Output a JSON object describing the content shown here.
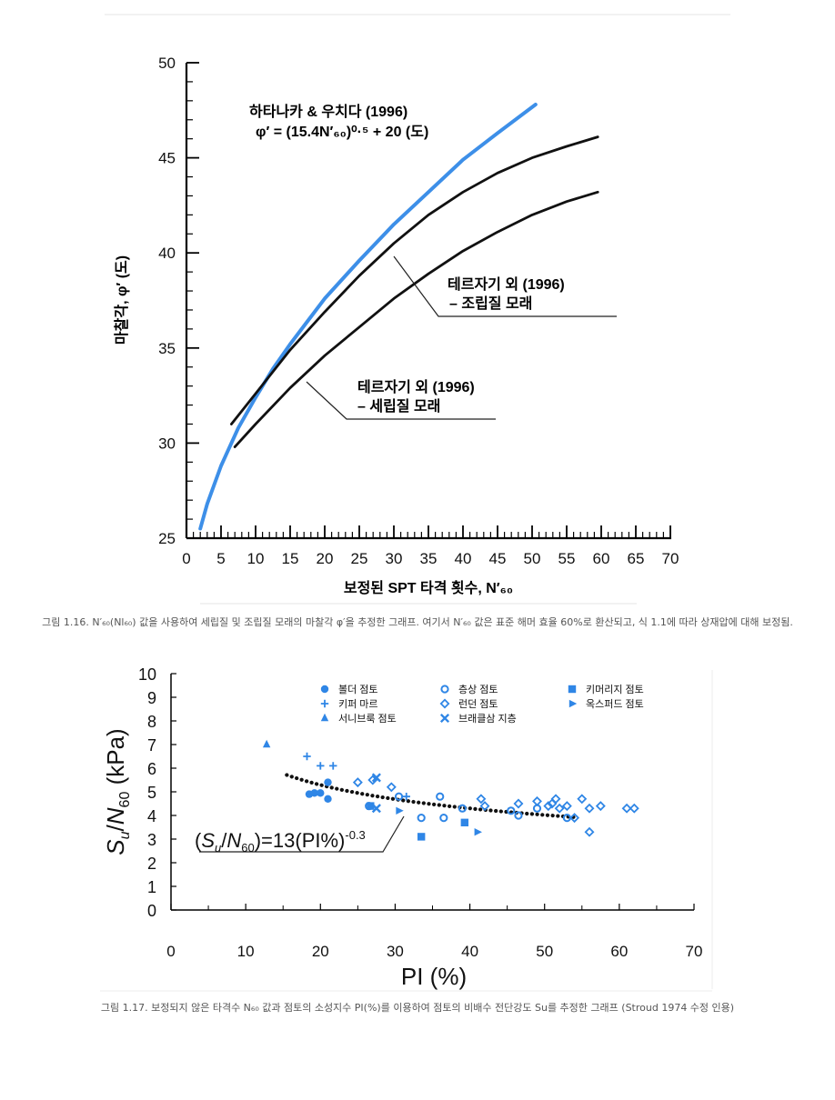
{
  "figure1": {
    "caption": "그림 1.16. N′₆₀(Nl₆₀) 값을 사용하여 세립질 및 조립질 모래의 마찰각 φ′을 추정한 그래프. 여기서 N′₆₀ 값은 표준 해머 효율 60%로 환산되고, 식 1.1에 따라 상재압에 대해 보정됨.",
    "annotation_blue_title": "하타나카 & 우치다 (1996)",
    "annotation_blue_formula": "φ′ = (15.4N′₆₀)⁰·⁵ + 20 (도)",
    "annotation_coarse_line1": "테르자기 외 (1996)",
    "annotation_coarse_line2": "– 조립질 모래",
    "annotation_fine_line1": "테르자기 외 (1996)",
    "annotation_fine_line2": "– 세립질 모래",
    "colors": {
      "blue": "#3d8fe8",
      "black": "#111111"
    }
  },
  "figure2": {
    "caption": "그림 1.17. 보정되지 않은 타격수 N₆₀ 값과 점토의 소성지수 PI(%)를 이용하여 점토의 비배수 전단강도 Su를 추정한 그래프 (Stroud 1974 수정 인용)",
    "equation": "(Su/N60)=13(PI%)-0.3",
    "colors": {
      "marker": "#2f86e6",
      "trend": "#111111"
    }
  },
  "chart_data": [
    {
      "type": "line",
      "xlabel": "보정된 SPT 타격 횟수, N′₆₀",
      "ylabel": "마찰각, φ′ (도)",
      "xlim": [
        0,
        70
      ],
      "ylim": [
        25,
        50
      ],
      "xticks": [
        "0",
        "5",
        "10",
        "15",
        "20",
        "25",
        "30",
        "35",
        "40",
        "45",
        "50",
        "55",
        "60",
        "65",
        "70"
      ],
      "yticks": [
        "25",
        "30",
        "35",
        "40",
        "45",
        "50"
      ],
      "grid": false,
      "series": [
        {
          "name": "하타나카 & 우치다 (1996)",
          "color": "#3d8fe8",
          "x": [
            2,
            3,
            5,
            7.5,
            10,
            12.5,
            15,
            17.5,
            20,
            25,
            30,
            35,
            40,
            45,
            50.5
          ],
          "y": [
            25.5,
            26.8,
            28.8,
            30.8,
            32.4,
            33.9,
            35.2,
            36.4,
            37.6,
            39.6,
            41.5,
            43.2,
            44.9,
            46.3,
            47.8
          ]
        },
        {
          "name": "테르자기 외 (1996) – 조립질 모래",
          "color": "#111111",
          "x": [
            6.5,
            10,
            15,
            20,
            25,
            30,
            35,
            40,
            45,
            50,
            55,
            59.5
          ],
          "y": [
            31.0,
            32.6,
            34.9,
            36.9,
            38.8,
            40.5,
            42.0,
            43.2,
            44.2,
            45.0,
            45.6,
            46.1
          ]
        },
        {
          "name": "테르자기 외 (1996) – 세립질 모래",
          "color": "#111111",
          "x": [
            7,
            10,
            15,
            20,
            25,
            30,
            35,
            40,
            45,
            50,
            55,
            59.5
          ],
          "y": [
            29.8,
            31.0,
            32.9,
            34.6,
            36.1,
            37.6,
            38.9,
            40.1,
            41.1,
            42.0,
            42.7,
            43.2
          ]
        }
      ]
    },
    {
      "type": "scatter",
      "xlabel": "PI (%)",
      "ylabel": "Su/N60 (kPa)",
      "xlim": [
        0,
        70
      ],
      "ylim": [
        0,
        10
      ],
      "xticks": [
        "0",
        "10",
        "20",
        "30",
        "40",
        "50",
        "60",
        "70"
      ],
      "yticks": [
        "0",
        "1",
        "2",
        "3",
        "4",
        "5",
        "6",
        "7",
        "8",
        "9",
        "10"
      ],
      "grid": false,
      "legend_position": "top",
      "trend": {
        "name": "(Su/N60)=13(PI%)-0.3",
        "coef": 13,
        "exp": -0.3,
        "x_range": [
          15.5,
          54
        ]
      },
      "series": [
        {
          "name": "볼더 점토",
          "marker": "circle",
          "points": [
            [
              18.5,
              4.9
            ],
            [
              19.2,
              4.95
            ],
            [
              20,
              4.95
            ],
            [
              21,
              5.4
            ],
            [
              21,
              4.7
            ]
          ]
        },
        {
          "name": "층상 점토",
          "marker": "circle-open",
          "points": [
            [
              26.5,
              4.4
            ],
            [
              30.5,
              4.8
            ],
            [
              33.5,
              3.9
            ],
            [
              36,
              4.8
            ],
            [
              36.5,
              3.9
            ],
            [
              39,
              4.3
            ],
            [
              45.5,
              4.2
            ],
            [
              46.5,
              4.0
            ],
            [
              49,
              4.3
            ],
            [
              53,
              3.9
            ]
          ]
        },
        {
          "name": "키머리지 점토",
          "marker": "square",
          "points": [
            [
              26.7,
              4.4
            ],
            [
              33.5,
              3.1
            ],
            [
              39.3,
              3.7
            ]
          ]
        },
        {
          "name": "키퍼 마르",
          "marker": "plus",
          "points": [
            [
              18.2,
              6.5
            ],
            [
              20,
              6.1
            ],
            [
              21.7,
              6.1
            ],
            [
              31.5,
              4.8
            ]
          ]
        },
        {
          "name": "런던 점토",
          "marker": "diamond",
          "points": [
            [
              25,
              5.4
            ],
            [
              27,
              5.5
            ],
            [
              29.5,
              5.2
            ],
            [
              41.5,
              4.7
            ],
            [
              42,
              4.4
            ],
            [
              46.5,
              4.5
            ],
            [
              49,
              4.6
            ],
            [
              50.5,
              4.4
            ],
            [
              51,
              4.5
            ],
            [
              51.5,
              4.7
            ],
            [
              52,
              4.3
            ],
            [
              53,
              4.4
            ],
            [
              54,
              3.9
            ],
            [
              55,
              4.7
            ],
            [
              56,
              4.3
            ],
            [
              56,
              3.3
            ],
            [
              57.5,
              4.4
            ],
            [
              61,
              4.3
            ],
            [
              62,
              4.3
            ]
          ]
        },
        {
          "name": "옥스퍼드 점토",
          "marker": "triangle-right",
          "points": [
            [
              30.5,
              4.2
            ],
            [
              41,
              3.3
            ]
          ]
        },
        {
          "name": "서니브룩 점토",
          "marker": "triangle-up",
          "points": [
            [
              12.8,
              7.0
            ]
          ]
        },
        {
          "name": "브래클삼 지층",
          "marker": "x",
          "points": [
            [
              27.5,
              5.6
            ],
            [
              27.5,
              4.3
            ]
          ]
        }
      ]
    }
  ]
}
